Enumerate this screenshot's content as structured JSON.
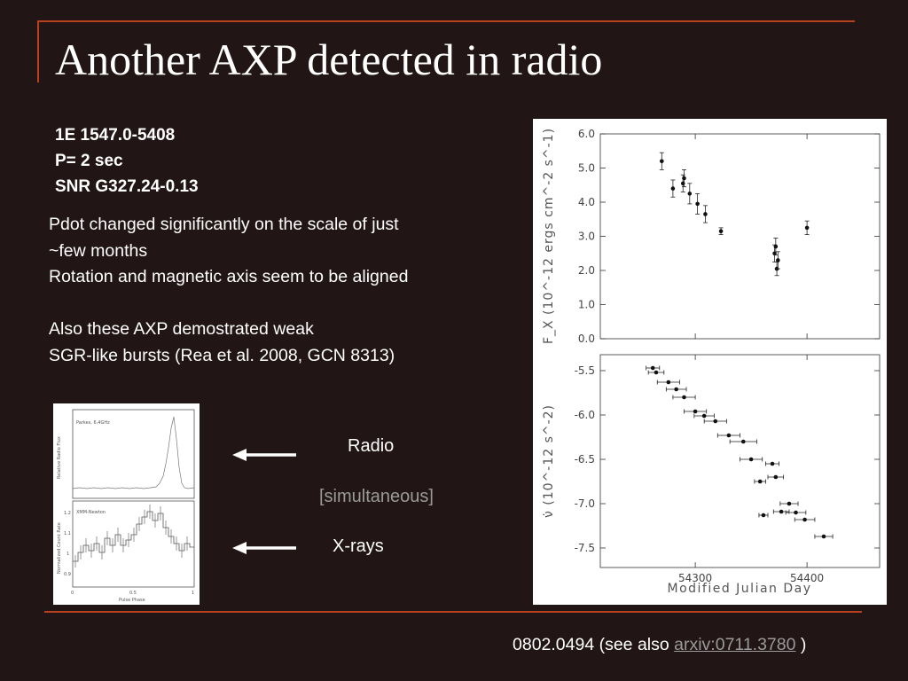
{
  "slide": {
    "title": "Another AXP detected in radio",
    "info_lines": [
      "1E 1547.0-5408",
      "P= 2 sec",
      "SNR G327.24-0.13"
    ],
    "body_lines": [
      "Pdot changed significantly on the scale of just",
      "~few months",
      "Rotation and magnetic axis seem to be aligned",
      "",
      "Also these AXP demostrated weak",
      "SGR-like bursts (Rea et al. 2008, GCN 8313)"
    ],
    "labels": {
      "radio": "Radio",
      "simultaneous": "[simultaneous]",
      "xrays": "X-rays"
    },
    "footer": {
      "prefix": "0802.0494 (see also ",
      "link": "arxiv:0711.3780",
      "suffix": " )"
    },
    "colors": {
      "background": "#211515",
      "accent_rule": "#b8401e",
      "muted_text": "#9a9a9a"
    }
  },
  "profile_figure": {
    "top_panel_label": "Parkes, 6.4GHz",
    "top_ylabel": "Relative Radio Flux",
    "bottom_panel_label": "XMM-Newton",
    "bottom_ylabel": "Normalized Count Rate",
    "xlabel": "Pulse Phase",
    "x_ticks": [
      "0",
      "0.5",
      "1"
    ],
    "y_ticks_bottom": [
      "0.9",
      "1",
      "1.1",
      "1.2"
    ]
  },
  "chart_data": [
    {
      "type": "scatter",
      "xlabel": "Modified Julian Day",
      "ylabel": "F_X (10^-12 ergs cm^-2 s^-1)",
      "ylim": [
        0.0,
        6.0
      ],
      "yticks": [
        "0.0",
        "1.0",
        "2.0",
        "3.0",
        "4.0",
        "5.0",
        "6.0"
      ],
      "x": [
        54270,
        54280,
        54289,
        54290,
        54295,
        54302,
        54309,
        54323,
        54371,
        54372,
        54373,
        54374,
        54400
      ],
      "y": [
        5.2,
        4.4,
        4.55,
        4.7,
        4.25,
        3.95,
        3.65,
        3.15,
        2.5,
        2.7,
        2.05,
        2.3,
        3.25
      ],
      "yerr": [
        0.25,
        0.25,
        0.25,
        0.25,
        0.3,
        0.3,
        0.25,
        0.1,
        0.25,
        0.25,
        0.2,
        0.25,
        0.2
      ]
    },
    {
      "type": "scatter",
      "xlabel": "Modified Julian Day",
      "ylabel": "ν̇ (10^-12 s^-2)",
      "xlim": [
        54215,
        54465
      ],
      "ylim": [
        -7.72,
        -5.32
      ],
      "xticks": [
        "54300",
        "54400"
      ],
      "yticks": [
        "-5.5",
        "-6.0",
        "-6.5",
        "-7.0",
        "-7.5"
      ],
      "x": [
        54262,
        54265,
        54276,
        54283,
        54290,
        54300,
        54308,
        54318,
        54330,
        54343,
        54350,
        54358,
        54361,
        54369,
        54372,
        54377,
        54384,
        54390,
        54398,
        54415
      ],
      "y": [
        -5.47,
        -5.52,
        -5.63,
        -5.71,
        -5.8,
        -5.96,
        -6.01,
        -6.07,
        -6.23,
        -6.3,
        -6.5,
        -6.75,
        -7.13,
        -6.55,
        -6.7,
        -7.09,
        -7.0,
        -7.1,
        -7.18,
        -7.37
      ],
      "xerr": [
        6,
        7,
        10,
        9,
        10,
        10,
        9,
        10,
        10,
        12,
        10,
        5,
        4,
        6,
        7,
        7,
        8,
        9,
        9,
        8
      ]
    }
  ]
}
